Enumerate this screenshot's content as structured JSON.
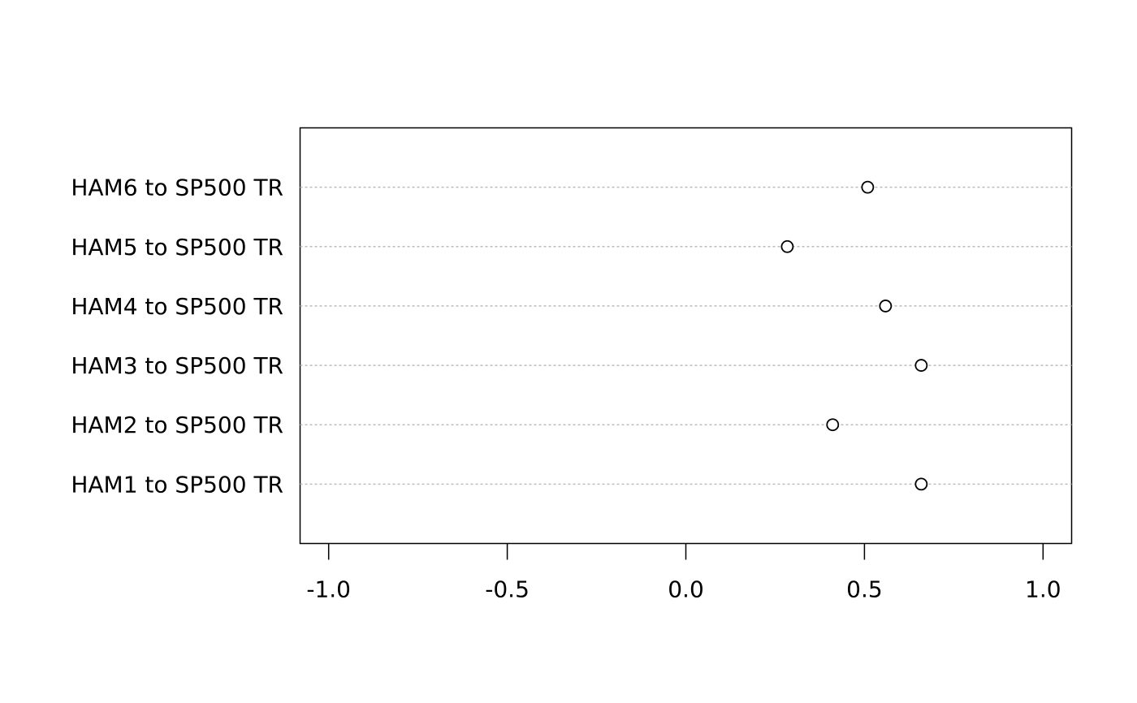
{
  "chart_data": {
    "type": "dotchart",
    "categories": [
      "HAM1 to SP500 TR",
      "HAM2 to SP500 TR",
      "HAM3 to SP500 TR",
      "HAM4 to SP500 TR",
      "HAM5 to SP500 TR",
      "HAM6 to SP500 TR"
    ],
    "values": [
      0.659,
      0.411,
      0.659,
      0.559,
      0.284,
      0.509
    ],
    "color": "#000000",
    "xlim": [
      -1.08,
      1.08
    ],
    "xticks": [
      {
        "value": -1,
        "label": "-1.0"
      },
      -0.5,
      {
        "value": 0,
        "label": "0.0"
      },
      0.5,
      {
        "value": 1,
        "label": "1.0"
      }
    ],
    "grid": true
  }
}
